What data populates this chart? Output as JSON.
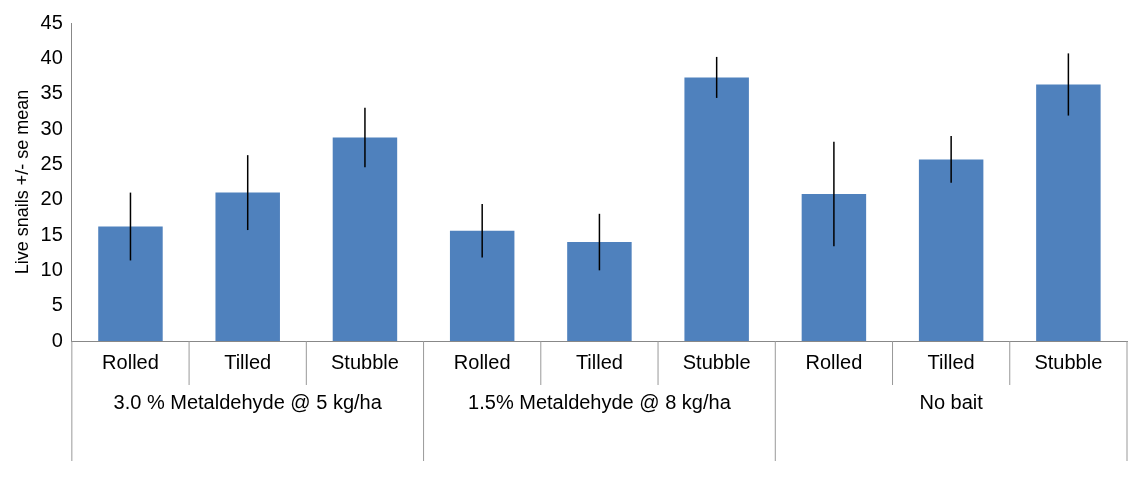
{
  "chart_data": {
    "type": "bar",
    "ylabel": "Live snails +/- se mean",
    "categories": [
      "Rolled",
      "Tilled",
      "Stubble",
      "Rolled",
      "Tilled",
      "Stubble",
      "Rolled",
      "Tilled",
      "Stubble"
    ],
    "values": [
      16.2,
      21,
      28.8,
      15.6,
      14,
      37.3,
      20.8,
      25.7,
      36.3
    ],
    "errors": [
      4.8,
      5.3,
      4.2,
      3.8,
      4,
      2.9,
      7.4,
      3.3,
      4.4
    ],
    "color": "#4f81bd",
    "ylim": [
      0,
      45
    ],
    "yticks": [
      0,
      5,
      10,
      15,
      20,
      25,
      30,
      35,
      40,
      45
    ],
    "grid": false,
    "legend": false,
    "annotations": [
      "3.0 % Metaldehyde @ 5 kg/ha",
      "1.5% Metaldehyde @ 8 kg/ha",
      "No bait"
    ]
  }
}
